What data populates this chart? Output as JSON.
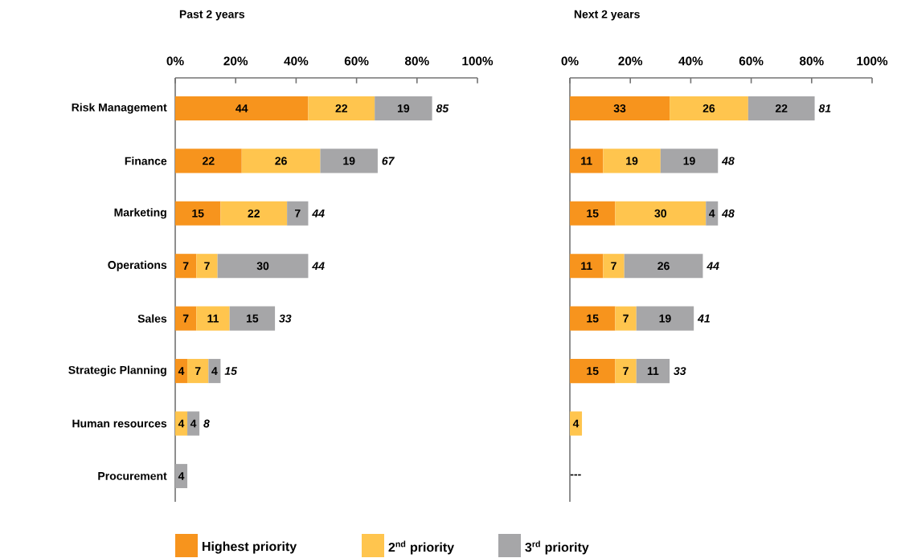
{
  "chart_data": [
    {
      "type": "bar",
      "orientation": "horizontal",
      "stacked": true,
      "title": "Past 2 years",
      "categories": [
        "Risk Management",
        "Finance",
        "Marketing",
        "Operations",
        "Sales",
        "Strategic Planning",
        "Human resources",
        "Procurement"
      ],
      "series": [
        {
          "name": "Highest priority",
          "color": "#f7941d",
          "values": [
            44,
            22,
            15,
            7,
            7,
            4,
            null,
            null
          ]
        },
        {
          "name": "2$^{nd}$ priority",
          "color": "#ffc54e",
          "values": [
            22,
            26,
            22,
            7,
            11,
            7,
            4,
            null
          ]
        },
        {
          "name": "3$^{rd}$ priority",
          "color": "#a6a6a8",
          "values": [
            19,
            19,
            7,
            30,
            15,
            4,
            4,
            4
          ]
        }
      ],
      "totals": [
        "85",
        "67",
        "44",
        "44",
        "33",
        "15",
        "8",
        null
      ],
      "xlim": [
        0,
        100
      ],
      "xticks": [
        {
          "value": 0,
          "label": "0%"
        },
        {
          "value": 20,
          "label": "20%"
        },
        {
          "value": 40,
          "label": "40%"
        },
        {
          "value": 60,
          "label": "60%"
        },
        {
          "value": 80,
          "label": "80%"
        },
        {
          "value": 100,
          "label": "100%"
        }
      ],
      "data_labels": true,
      "legend": "bottom",
      "grid": false
    },
    {
      "type": "bar",
      "orientation": "horizontal",
      "stacked": true,
      "title": "Next 2 years",
      "categories": [
        null,
        null,
        null,
        null,
        null,
        null,
        null,
        null
      ],
      "series": [
        {
          "color": "#f7941d",
          "values": [
            33,
            11,
            15,
            11,
            15,
            15,
            null,
            null
          ]
        },
        {
          "color": "#ffc54e",
          "values": [
            26,
            19,
            30,
            7,
            7,
            7,
            4,
            null
          ]
        },
        {
          "color": "#a6a6a8",
          "values": [
            22,
            19,
            4,
            26,
            19,
            11,
            null,
            null
          ]
        }
      ],
      "totals": [
        "81",
        "48",
        "48",
        "44",
        "41",
        "33",
        null,
        null
      ],
      "annotations": [
        "---"
      ],
      "xlim": [
        0,
        100
      ],
      "xticks": [
        {
          "value": 0,
          "label": "0%"
        },
        {
          "value": 20,
          "label": "20%"
        },
        {
          "value": 40,
          "label": "40%"
        },
        {
          "value": 60,
          "label": "60%"
        },
        {
          "value": 80,
          "label": "80%"
        },
        {
          "value": 100,
          "label": "100%"
        }
      ],
      "data_labels": true,
      "tick_labels": "x",
      "grid": false
    }
  ]
}
